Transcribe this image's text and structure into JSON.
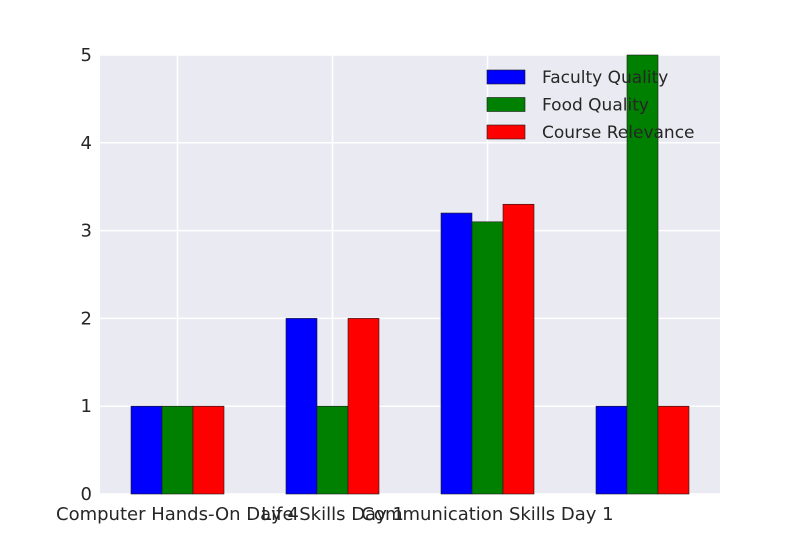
{
  "chart_data": {
    "type": "bar",
    "title": "",
    "xlabel": "",
    "ylabel": "",
    "ylim": [
      0,
      5
    ],
    "yticks": [
      0,
      1,
      2,
      3,
      4,
      5
    ],
    "categories": [
      "Computer Hands-On Day 4",
      "Life Skills Day 1",
      "Communication Skills Day 1",
      ""
    ],
    "series": [
      {
        "name": "Faculty Quality",
        "color": "#0000ff",
        "values": [
          1,
          2,
          3.2,
          1
        ]
      },
      {
        "name": "Food Quality",
        "color": "#008000",
        "values": [
          1,
          1,
          3.1,
          5
        ]
      },
      {
        "name": "Course Relevance",
        "color": "#ff0000",
        "values": [
          1,
          2,
          3.3,
          1
        ]
      }
    ],
    "grid": true,
    "legend_position": "top-right",
    "background": "#eaeaf2"
  }
}
